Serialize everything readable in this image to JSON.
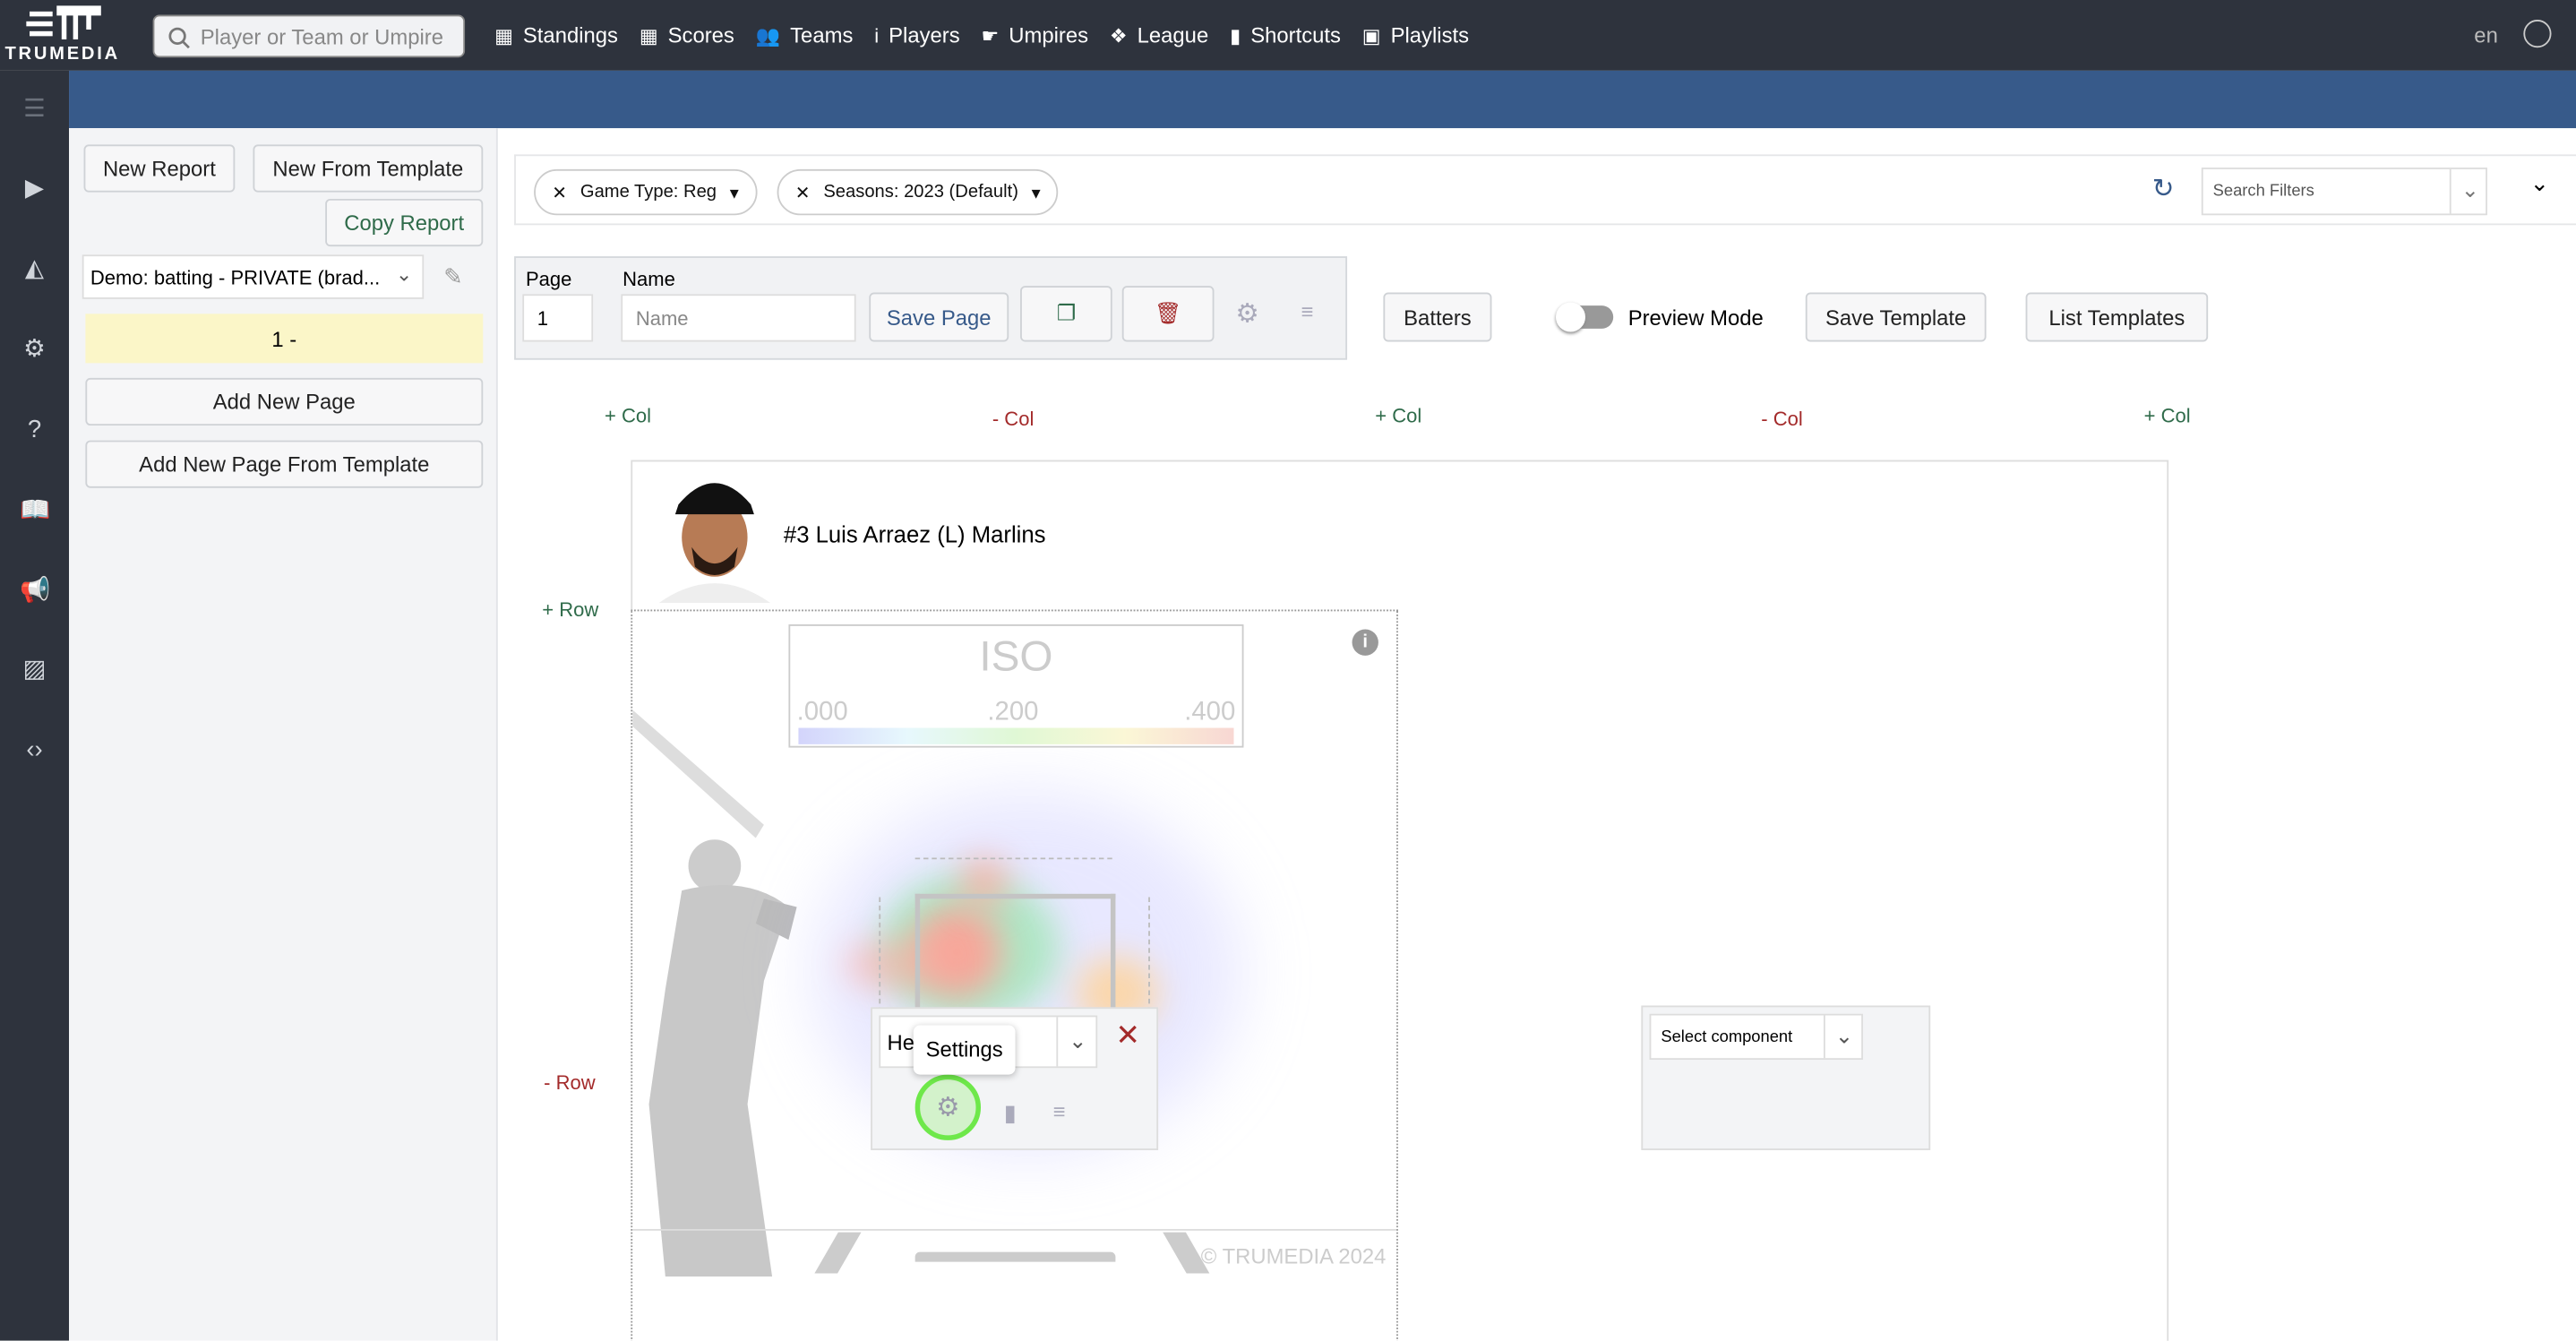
{
  "header": {
    "brand": "TRUMEDIA",
    "search_placeholder": "Player or Team or Umpire",
    "nav": [
      {
        "label": "Standings",
        "icon": "table-icon"
      },
      {
        "label": "Scores",
        "icon": "grid-icon"
      },
      {
        "label": "Teams",
        "icon": "users-icon"
      },
      {
        "label": "Players",
        "icon": "person-icon"
      },
      {
        "label": "Umpires",
        "icon": "thumbs-icon"
      },
      {
        "label": "League",
        "icon": "cubes-icon"
      },
      {
        "label": "Shortcuts",
        "icon": "bookmark-icon"
      },
      {
        "label": "Playlists",
        "icon": "playlist-icon"
      }
    ],
    "lang": "en"
  },
  "sidebar": {
    "new_report": "New Report",
    "new_from_template": "New From Template",
    "copy_report": "Copy Report",
    "report_select": "Demo: batting - PRIVATE (brad...",
    "page_item": "1 -",
    "add_new_page": "Add New Page",
    "add_new_page_template": "Add New Page From Template"
  },
  "filters": {
    "chips": [
      "Game Type: Reg",
      "Seasons: 2023 (Default)"
    ],
    "search_placeholder": "Search Filters"
  },
  "toolbar": {
    "page_label": "Page",
    "page_value": "1",
    "name_label": "Name",
    "name_placeholder": "Name",
    "save_page": "Save Page",
    "batters": "Batters",
    "preview_mode": "Preview Mode",
    "preview_on": false,
    "save_template": "Save Template",
    "list_templates": "List Templates"
  },
  "grid": {
    "add_col": "+ Col",
    "remove_col": "- Col",
    "add_row": "+ Row",
    "remove_row": "- Row"
  },
  "player": {
    "title": "#3 Luis Arraez (L) Marlins"
  },
  "heatmap": {
    "metric": "ISO",
    "scale_labels": [
      ".000",
      ".200",
      ".400"
    ],
    "watermark": "© TRUMEDIA 2024",
    "component_value": "Hea",
    "tooltip": "Settings"
  },
  "empty_cell": {
    "select_placeholder": "Select component"
  },
  "colors": {
    "topbar": "#2e333d",
    "banner": "#375a8a",
    "accent_green": "#2f6b4a",
    "danger": "#a32a2a",
    "highlight": "#6ee84a"
  }
}
